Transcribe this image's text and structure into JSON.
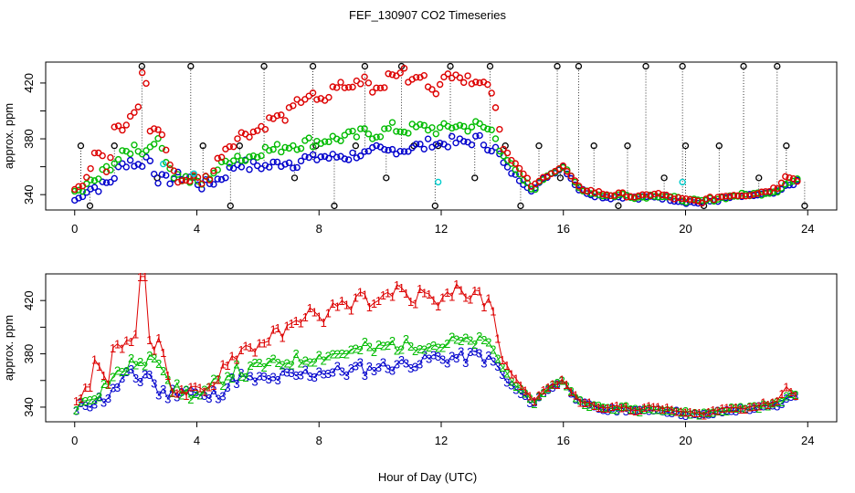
{
  "chart_data": [
    {
      "type": "scatter",
      "title": "FEF_130907  CO2 Timeseries",
      "xlabel": "",
      "ylabel": "approx. ppm",
      "xlim": [
        -0.95,
        24.95
      ],
      "ylim": [
        329,
        435
      ],
      "x_ticks": [
        0,
        4,
        8,
        12,
        16,
        20,
        24
      ],
      "y_ticks": [
        340,
        360,
        380,
        400,
        420
      ],
      "y_tick_labels": [
        "340",
        "",
        "380",
        "",
        "420"
      ],
      "colors": {
        "series1": "#dd0000",
        "series2": "#00bb00",
        "series3": "#0000cc",
        "black": "#000000",
        "cyan": "#00cccc"
      },
      "series": [
        {
          "name": "1",
          "color": "#dd0000",
          "x": [
            0.2,
            0.5,
            0.7,
            0.9,
            1.1,
            1.3,
            1.5,
            1.7,
            1.9,
            2.1,
            2.2,
            2.3,
            2.5,
            2.7,
            2.9,
            3.2,
            3.5,
            3.8,
            4.2,
            4.5,
            4.8,
            5.0,
            5.3,
            5.6,
            5.9,
            6.2,
            6.5,
            6.8,
            7.1,
            7.4,
            7.7,
            8.0,
            8.3,
            8.6,
            8.9,
            9.2,
            9.5,
            9.8,
            10.1,
            10.4,
            10.7,
            11.0,
            11.3,
            11.6,
            11.9,
            12.2,
            12.5,
            12.8,
            13.1,
            13.4,
            13.7,
            14.0,
            14.5,
            15.0,
            15.5,
            16.0,
            16.5,
            17.0,
            17.5,
            18.0,
            18.5,
            19.0,
            19.5,
            20.0,
            20.5,
            21.0,
            21.5,
            22.0,
            22.5,
            23.0,
            23.3,
            23.6
          ],
          "y": [
            347,
            360,
            375,
            370,
            355,
            390,
            385,
            390,
            395,
            405,
            425,
            430,
            380,
            390,
            380,
            355,
            350,
            352,
            350,
            355,
            370,
            375,
            380,
            385,
            385,
            390,
            395,
            395,
            400,
            408,
            412,
            405,
            410,
            420,
            415,
            420,
            425,
            415,
            420,
            425,
            430,
            420,
            425,
            420,
            415,
            425,
            430,
            420,
            425,
            420,
            415,
            375,
            360,
            345,
            355,
            360,
            345,
            342,
            340,
            340,
            338,
            341,
            338,
            336,
            335,
            338,
            340,
            340,
            342,
            345,
            355,
            350
          ]
        },
        {
          "name": "2",
          "color": "#00bb00",
          "x": [
            0.2,
            0.5,
            0.8,
            1.1,
            1.4,
            1.7,
            2.0,
            2.3,
            2.6,
            2.9,
            3.2,
            3.5,
            3.8,
            4.2,
            4.5,
            4.8,
            5.0,
            5.3,
            5.6,
            5.9,
            6.2,
            6.5,
            6.8,
            7.1,
            7.4,
            7.7,
            8.0,
            8.3,
            8.6,
            8.9,
            9.2,
            9.5,
            9.8,
            10.1,
            10.4,
            10.7,
            11.0,
            11.3,
            11.6,
            11.9,
            12.2,
            12.5,
            12.8,
            13.1,
            13.4,
            13.7,
            14.0,
            14.5,
            15.0,
            15.5,
            16.0,
            16.5,
            17.0,
            17.5,
            18.0,
            18.5,
            19.0,
            19.5,
            20.0,
            20.5,
            21.0,
            21.5,
            22.0,
            22.5,
            23.0,
            23.3,
            23.6
          ],
          "y": [
            342,
            348,
            352,
            360,
            365,
            370,
            375,
            370,
            380,
            372,
            355,
            352,
            350,
            348,
            356,
            360,
            365,
            368,
            365,
            370,
            372,
            372,
            374,
            376,
            376,
            378,
            378,
            380,
            380,
            382,
            382,
            385,
            383,
            385,
            388,
            386,
            387,
            388,
            388,
            386,
            388,
            390,
            388,
            390,
            388,
            385,
            370,
            355,
            343,
            355,
            360,
            345,
            341,
            339,
            340,
            338,
            340,
            338,
            336,
            335,
            337,
            339,
            340,
            341,
            343,
            348,
            350
          ]
        },
        {
          "name": "3",
          "color": "#0000cc",
          "x": [
            0.1,
            0.3,
            0.6,
            0.9,
            1.2,
            1.5,
            1.8,
            2.1,
            2.4,
            2.7,
            3.0,
            3.3,
            3.6,
            3.9,
            4.2,
            4.5,
            4.8,
            5.1,
            5.4,
            5.7,
            6.0,
            6.3,
            6.6,
            6.9,
            7.2,
            7.5,
            7.8,
            8.1,
            8.4,
            8.7,
            9.0,
            9.3,
            9.6,
            9.9,
            10.2,
            10.5,
            10.8,
            11.1,
            11.4,
            11.7,
            12.0,
            12.3,
            12.6,
            12.9,
            13.2,
            13.5,
            13.8,
            14.1,
            14.5,
            15.0,
            15.5,
            16.0,
            16.5,
            17.0,
            17.5,
            18.0,
            18.5,
            19.0,
            19.5,
            20.0,
            20.5,
            21.0,
            21.5,
            22.0,
            22.5,
            23.0,
            23.3,
            23.6
          ],
          "y": [
            336,
            343,
            345,
            346,
            350,
            360,
            365,
            360,
            368,
            352,
            350,
            352,
            354,
            351,
            346,
            349,
            352,
            358,
            364,
            360,
            361,
            360,
            362,
            364,
            362,
            366,
            365,
            368,
            366,
            368,
            367,
            370,
            368,
            372,
            370,
            373,
            372,
            375,
            374,
            378,
            376,
            378,
            377,
            378,
            380,
            376,
            372,
            360,
            352,
            343,
            354,
            360,
            344,
            340,
            338,
            339,
            337,
            339,
            337,
            335,
            334,
            336,
            338,
            339,
            340,
            341,
            346,
            349
          ]
        }
      ],
      "markers": "circles; black outliers with dotted vertical lines; occasional cyan points"
    },
    {
      "type": "scatter",
      "title": "",
      "xlabel": "Hour of Day (UTC)",
      "ylabel": "approx. ppm",
      "xlim": [
        -0.95,
        24.95
      ],
      "ylim": [
        329,
        440
      ],
      "x_ticks": [
        0,
        4,
        8,
        12,
        16,
        20,
        24
      ],
      "y_ticks": [
        340,
        360,
        380,
        400,
        420
      ],
      "y_tick_labels": [
        "340",
        "",
        "380",
        "",
        "420"
      ],
      "series_labels": [
        "1",
        "2",
        "3"
      ],
      "markers": "numeric glyphs '1', '2', '3' joined by lines in series color"
    }
  ]
}
